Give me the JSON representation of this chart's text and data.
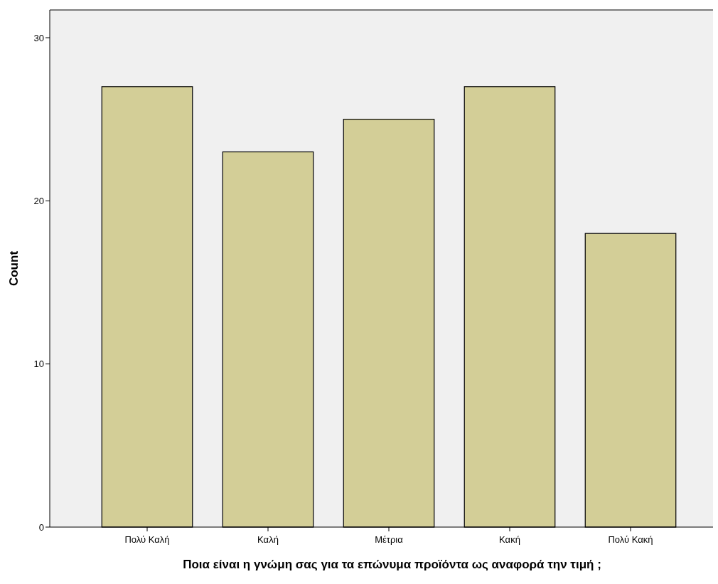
{
  "chart_data": {
    "type": "bar",
    "xlabel": "Ποια είναι η γνώμη σας για τα επώνυμα προϊόντα ως αναφορά την τιμή ;",
    "ylabel": "Count",
    "categories": [
      "Πολύ Καλή",
      "Καλή",
      "Μέτρια",
      "Κακή",
      "Πολύ Κακή"
    ],
    "values": [
      27,
      23,
      25,
      27,
      18
    ],
    "color": "#d3ce97",
    "ylim": [
      0,
      31.7
    ],
    "yticks": [
      0,
      10,
      20,
      30
    ],
    "grid": false
  }
}
